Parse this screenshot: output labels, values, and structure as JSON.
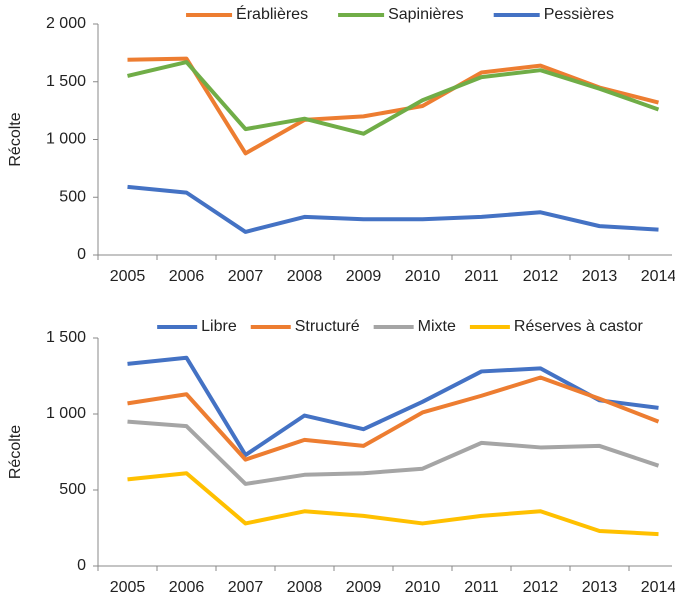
{
  "chart_data": [
    {
      "type": "line",
      "ylabel": "Récolte",
      "categories": [
        "2005",
        "2006",
        "2007",
        "2008",
        "2009",
        "2010",
        "2011",
        "2012",
        "2013",
        "2014"
      ],
      "ylim": [
        0,
        2000
      ],
      "yticks": [
        0,
        500,
        {
          "value": 1000,
          "label": "1 000"
        },
        {
          "value": 1500,
          "label": "1 500"
        },
        {
          "value": 2000,
          "label": "2 000"
        }
      ],
      "series": [
        {
          "name": "Érablières",
          "color": "#ed7d31",
          "values": [
            1690,
            1700,
            880,
            1170,
            1200,
            1290,
            1580,
            1640,
            1450,
            1320
          ]
        },
        {
          "name": "Sapinières",
          "color": "#70ad47",
          "values": [
            1550,
            1670,
            1090,
            1180,
            1050,
            1340,
            1540,
            1600,
            1440,
            1260
          ]
        },
        {
          "name": "Pessières",
          "color": "#4472c4",
          "values": [
            590,
            540,
            200,
            330,
            310,
            310,
            330,
            370,
            250,
            220
          ]
        }
      ]
    },
    {
      "type": "line",
      "ylabel": "Récolte",
      "categories": [
        "2005",
        "2006",
        "2007",
        "2008",
        "2009",
        "2010",
        "2011",
        "2012",
        "2013",
        "2014"
      ],
      "ylim": [
        0,
        1500
      ],
      "yticks": [
        0,
        500,
        {
          "value": 1000,
          "label": "1 000"
        },
        {
          "value": 1500,
          "label": "1 500"
        }
      ],
      "series": [
        {
          "name": "Libre",
          "color": "#4472c4",
          "values": [
            1330,
            1370,
            730,
            990,
            900,
            1080,
            1280,
            1300,
            1090,
            1040
          ]
        },
        {
          "name": "Structuré",
          "color": "#ed7d31",
          "values": [
            1070,
            1130,
            700,
            830,
            790,
            1010,
            1120,
            1240,
            1100,
            950
          ]
        },
        {
          "name": "Mixte",
          "color": "#a5a5a5",
          "values": [
            950,
            920,
            540,
            600,
            610,
            640,
            810,
            780,
            790,
            660
          ]
        },
        {
          "name": "Réserves à castor",
          "color": "#ffc000",
          "values": [
            570,
            610,
            280,
            360,
            330,
            280,
            330,
            360,
            230,
            210
          ]
        }
      ]
    }
  ]
}
